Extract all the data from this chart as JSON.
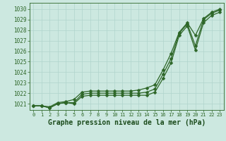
{
  "title": "Graphe pression niveau de la mer (hPa)",
  "x_labels": [
    "0",
    "1",
    "2",
    "3",
    "4",
    "5",
    "6",
    "7",
    "8",
    "9",
    "10",
    "11",
    "12",
    "13",
    "14",
    "15",
    "16",
    "17",
    "18",
    "19",
    "20",
    "21",
    "22",
    "23"
  ],
  "x_values": [
    0,
    1,
    2,
    3,
    4,
    5,
    6,
    7,
    8,
    9,
    10,
    11,
    12,
    13,
    14,
    15,
    16,
    17,
    18,
    19,
    20,
    21,
    22,
    23
  ],
  "series": [
    [
      1020.8,
      1020.8,
      1020.6,
      1021.0,
      1021.1,
      1021.0,
      1021.7,
      1021.8,
      1021.8,
      1021.8,
      1021.8,
      1021.8,
      1021.8,
      1021.8,
      1021.8,
      1022.1,
      1023.4,
      1024.9,
      1027.5,
      1028.4,
      1026.1,
      1028.7,
      1029.4,
      1029.7
    ],
    [
      1020.8,
      1020.8,
      1020.6,
      1021.0,
      1021.1,
      1021.1,
      1021.9,
      1022.0,
      1022.0,
      1022.0,
      1022.0,
      1022.0,
      1022.0,
      1022.0,
      1022.1,
      1022.4,
      1023.8,
      1025.3,
      1027.7,
      1028.6,
      1026.5,
      1029.0,
      1029.6,
      1029.9
    ],
    [
      1020.8,
      1020.8,
      1020.7,
      1021.1,
      1021.2,
      1021.4,
      1022.1,
      1022.2,
      1022.2,
      1022.2,
      1022.2,
      1022.2,
      1022.2,
      1022.3,
      1022.5,
      1022.8,
      1024.2,
      1025.8,
      1027.8,
      1028.7,
      1027.5,
      1029.1,
      1029.7,
      1030.0
    ]
  ],
  "line_color": "#2d6627",
  "marker": "D",
  "marker_size": 2.5,
  "bg_color": "#cce8e0",
  "grid_color": "#b0d4cc",
  "ylim": [
    1020.4,
    1030.6
  ],
  "yticks": [
    1021,
    1022,
    1023,
    1024,
    1025,
    1026,
    1027,
    1028,
    1029,
    1030
  ],
  "title_color": "#1a4a1a",
  "title_fontsize": 7.0,
  "axis_color": "#2d6627",
  "linewidth": 0.9
}
